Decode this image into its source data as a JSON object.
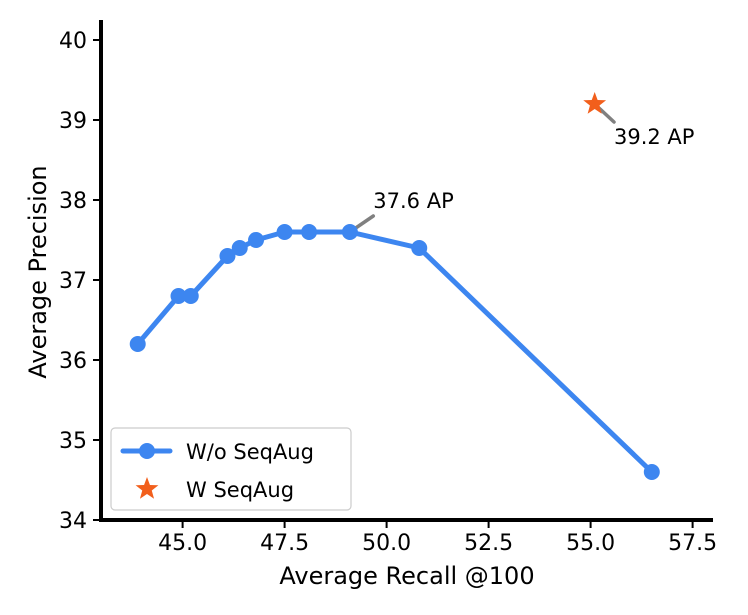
{
  "colors": {
    "line": "#3d86f0",
    "star": "#f25f1c",
    "annotation_line": "#808080",
    "legend_border": "#cccccc"
  },
  "chart_data": {
    "type": "line",
    "xlabel": "Average Recall @100",
    "ylabel": "Average Precision",
    "xlim": [
      43.0,
      58.0
    ],
    "ylim": [
      34,
      40.2
    ],
    "xticks": [
      45.0,
      47.5,
      50.0,
      52.5,
      55.0,
      57.5
    ],
    "xtick_labels": [
      "45.0",
      "47.5",
      "50.0",
      "52.5",
      "55.0",
      "57.5"
    ],
    "yticks": [
      34,
      35,
      36,
      37,
      38,
      39,
      40
    ],
    "ytick_labels": [
      "34",
      "35",
      "36",
      "37",
      "38",
      "39",
      "40"
    ],
    "grid": false,
    "legend_position": "lower-left",
    "series": [
      {
        "name": "W/o SeqAug",
        "marker": "circle",
        "x": [
          43.9,
          44.9,
          45.2,
          46.1,
          46.4,
          46.8,
          47.5,
          48.1,
          49.1,
          50.8,
          56.5
        ],
        "y": [
          36.2,
          36.8,
          36.8,
          37.3,
          37.4,
          37.5,
          37.6,
          37.6,
          37.6,
          37.4,
          34.6
        ]
      },
      {
        "name": "W SeqAug",
        "marker": "star",
        "x": [
          55.1
        ],
        "y": [
          39.2
        ]
      }
    ],
    "annotations": [
      {
        "text": "37.6 AP",
        "x": 49.1,
        "y": 37.6,
        "text_x": 49.6,
        "text_y": 37.9
      },
      {
        "text": "39.2 AP",
        "x": 55.1,
        "y": 39.2,
        "text_x": 55.5,
        "text_y": 38.7
      }
    ]
  }
}
